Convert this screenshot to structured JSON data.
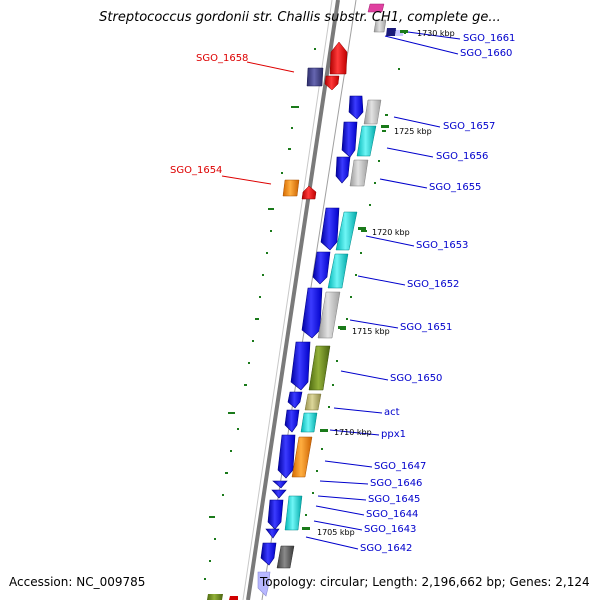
{
  "title": "Streptococcus gordonii str. Challis substr. CH1, complete ge...",
  "footer": {
    "accession": "Accession: NC_009785",
    "summary": "Topology: circular; Length: 2,196,662 bp; Genes: 2,124"
  },
  "scale_ticks": [
    "1730 kbp",
    "1725 kbp",
    "1720 kbp",
    "1715 kbp",
    "1710 kbp",
    "1705 kbp"
  ],
  "gene_labels_right": [
    "SGO_1661",
    "SGO_1660",
    "SGO_1657",
    "SGO_1656",
    "SGO_1655",
    "SGO_1653",
    "SGO_1652",
    "SGO_1651",
    "SGO_1650",
    "act",
    "ppx1",
    "SGO_1647",
    "SGO_1646",
    "SGO_1645",
    "SGO_1644",
    "SGO_1643",
    "SGO_1642"
  ],
  "gene_labels_left": [
    "SGO_1658",
    "SGO_1654"
  ],
  "colors": {
    "forward_strand": "#1a1ae6",
    "backbone": "#888888",
    "label_right": "#0000cc",
    "label_left": "#dd0000",
    "gc_ticks": "#1a7a1a"
  }
}
